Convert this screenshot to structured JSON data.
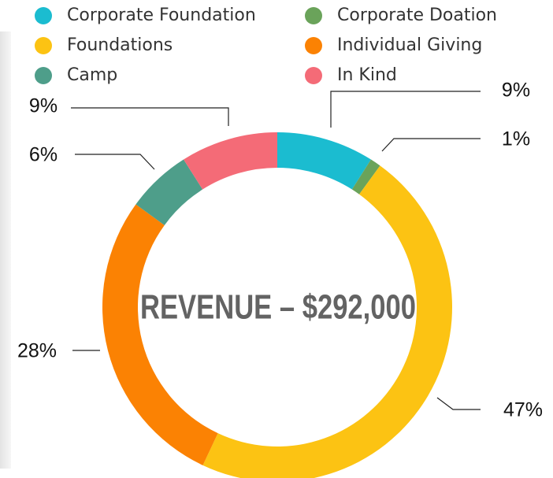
{
  "chart_data": {
    "type": "donut",
    "center_label": "REVENUE – $292,000",
    "categories": [
      "Corporate Foundation",
      "Corporate Doation",
      "Foundations",
      "Individual Giving",
      "Camp",
      "In Kind"
    ],
    "values": [
      9,
      1,
      47,
      28,
      6,
      9
    ],
    "value_labels": [
      "9%",
      "1%",
      "47%",
      "28%",
      "6%",
      "9%"
    ],
    "colors": [
      "#1bbcd0",
      "#6aa35a",
      "#fcc313",
      "#fb8203",
      "#4e9e8a",
      "#f46b77"
    ],
    "legend": "top"
  }
}
